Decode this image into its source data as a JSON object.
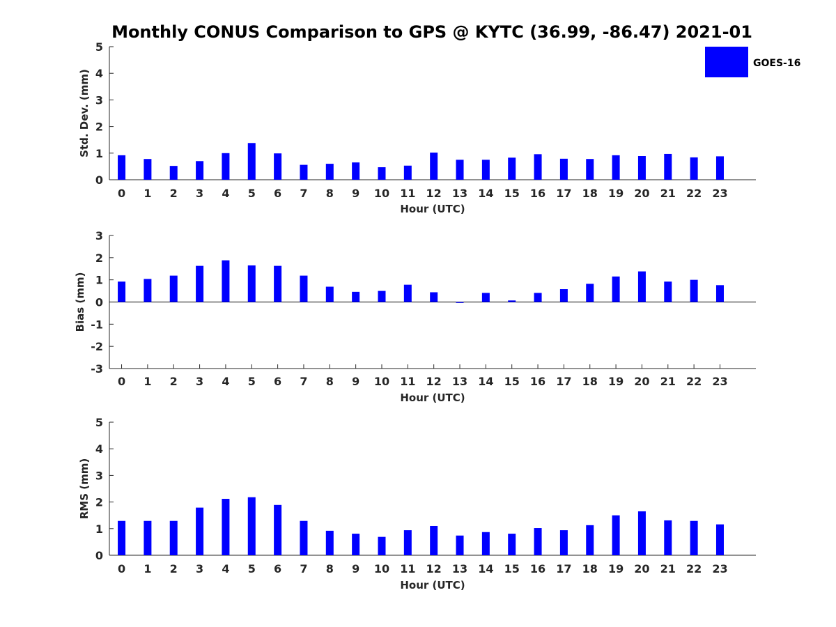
{
  "figure": {
    "title": "Monthly CONUS Comparison to GPS @ KYTC (36.99, -86.47) 2021-01",
    "legend": {
      "label": "GOES-16",
      "color": "#0000ff",
      "placement": "top-right"
    }
  },
  "chart_data": [
    {
      "type": "bar",
      "title": "Monthly CONUS Comparison to GPS @ KYTC (36.99, -86.47) 2021-01",
      "xlabel": "Hour (UTC)",
      "ylabel": "Std. Dev. (mm)",
      "ylim": [
        0,
        5
      ],
      "yticks": [
        "0",
        "1",
        "2",
        "3",
        "4",
        "5"
      ],
      "categories": [
        "0",
        "1",
        "2",
        "3",
        "4",
        "5",
        "6",
        "7",
        "8",
        "9",
        "10",
        "11",
        "12",
        "13",
        "14",
        "15",
        "16",
        "17",
        "18",
        "19",
        "20",
        "21",
        "22",
        "23"
      ],
      "series": [
        {
          "name": "GOES-16",
          "color": "#0000ff",
          "values": [
            0.92,
            0.78,
            0.52,
            0.7,
            1.0,
            1.38,
            0.99,
            0.56,
            0.6,
            0.65,
            0.47,
            0.53,
            1.02,
            0.75,
            0.75,
            0.83,
            0.96,
            0.79,
            0.78,
            0.92,
            0.89,
            0.97,
            0.84,
            0.88
          ]
        }
      ],
      "grid": false
    },
    {
      "type": "bar",
      "xlabel": "Hour (UTC)",
      "ylabel": "Bias (mm)",
      "ylim": [
        -3,
        3
      ],
      "yticks": [
        "-3",
        "-2",
        "-1",
        "0",
        "1",
        "2",
        "3"
      ],
      "categories": [
        "0",
        "1",
        "2",
        "3",
        "4",
        "5",
        "6",
        "7",
        "8",
        "9",
        "10",
        "11",
        "12",
        "13",
        "14",
        "15",
        "16",
        "17",
        "18",
        "19",
        "20",
        "21",
        "22",
        "23"
      ],
      "series": [
        {
          "name": "GOES-16",
          "color": "#0000ff",
          "values": [
            0.92,
            1.04,
            1.19,
            1.63,
            1.88,
            1.65,
            1.63,
            1.19,
            0.69,
            0.46,
            0.5,
            0.78,
            0.44,
            -0.04,
            0.41,
            0.07,
            0.41,
            0.58,
            0.82,
            1.15,
            1.38,
            0.92,
            1.0,
            0.76
          ]
        }
      ],
      "grid": false
    },
    {
      "type": "bar",
      "xlabel": "Hour (UTC)",
      "ylabel": "RMS (mm)",
      "ylim": [
        0,
        5
      ],
      "yticks": [
        "0",
        "1",
        "2",
        "3",
        "4",
        "5"
      ],
      "categories": [
        "0",
        "1",
        "2",
        "3",
        "4",
        "5",
        "6",
        "7",
        "8",
        "9",
        "10",
        "11",
        "12",
        "13",
        "14",
        "15",
        "16",
        "17",
        "18",
        "19",
        "20",
        "21",
        "22",
        "23"
      ],
      "series": [
        {
          "name": "GOES-16",
          "color": "#0000ff",
          "values": [
            1.29,
            1.29,
            1.29,
            1.79,
            2.12,
            2.18,
            1.89,
            1.29,
            0.92,
            0.81,
            0.69,
            0.94,
            1.1,
            0.74,
            0.87,
            0.81,
            1.02,
            0.94,
            1.13,
            1.5,
            1.65,
            1.31,
            1.29,
            1.16
          ]
        }
      ],
      "grid": false
    }
  ]
}
